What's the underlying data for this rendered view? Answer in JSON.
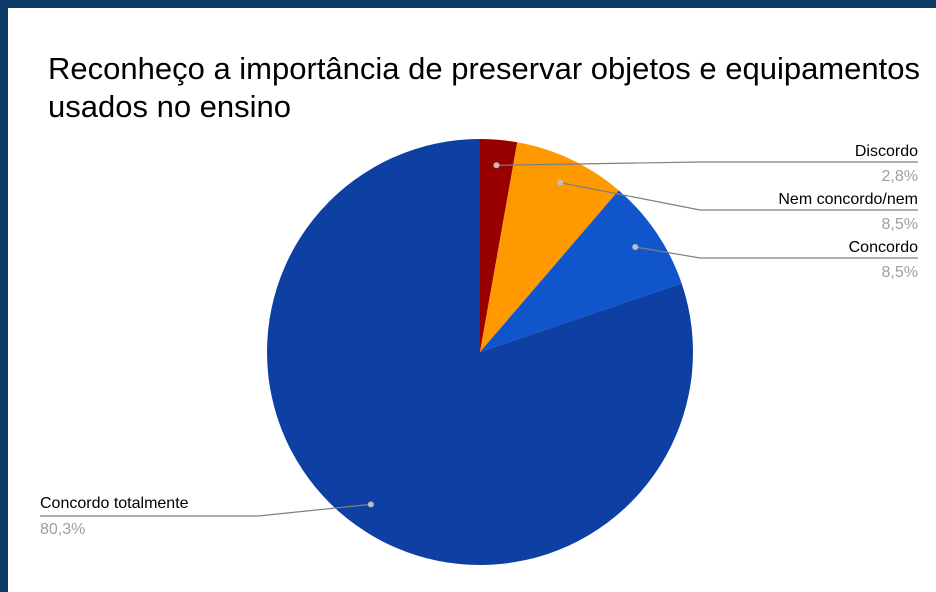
{
  "chart_data": {
    "type": "pie",
    "title": "Reconheço a importância de preservar objetos e equipamentos usados no ensino",
    "slices": [
      {
        "label": "Discordo",
        "value": 2.8,
        "value_label": "2,8%",
        "color": "#990000"
      },
      {
        "label": "Nem concordo/nem",
        "value": 8.5,
        "value_label": "8,5%",
        "color": "#ff9900"
      },
      {
        "label": "Concordo",
        "value": 8.5,
        "value_label": "8,5%",
        "color": "#1155cc"
      },
      {
        "label": "Concordo totalmente",
        "value": 80.3,
        "value_label": "80,3%",
        "color": "#0e3fa3"
      }
    ],
    "legend": "none",
    "label_colors": {
      "name": "#000000",
      "value": "#9e9e9e",
      "leader": "#7f7f7f"
    }
  }
}
